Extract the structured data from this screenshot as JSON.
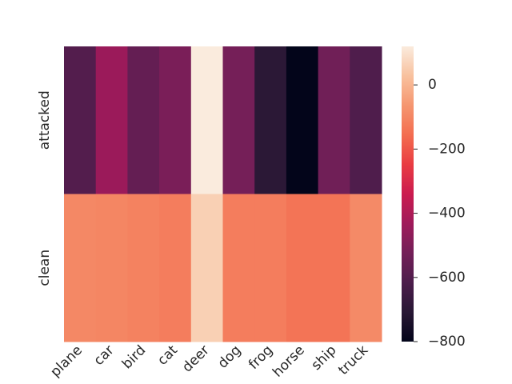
{
  "chart_data": {
    "type": "heatmap",
    "x": [
      "plane",
      "car",
      "bird",
      "cat",
      "deer",
      "dog",
      "frog",
      "horse",
      "ship",
      "truck"
    ],
    "y": [
      "attacked",
      "clean"
    ],
    "values": [
      [
        -600,
        -440,
        -560,
        -510,
        120,
        -520,
        -700,
        -800,
        -530,
        -610
      ],
      [
        -95,
        -100,
        -110,
        -120,
        60,
        -120,
        -120,
        -140,
        -140,
        -90
      ]
    ],
    "colormap": "rocket",
    "zlim": [
      -800,
      120
    ],
    "zticks": [
      {
        "value": -800,
        "label": "−800"
      },
      {
        "value": -600,
        "label": "−600"
      },
      {
        "value": -400,
        "label": "−400"
      },
      {
        "value": -200,
        "label": "−200"
      },
      0
    ]
  }
}
